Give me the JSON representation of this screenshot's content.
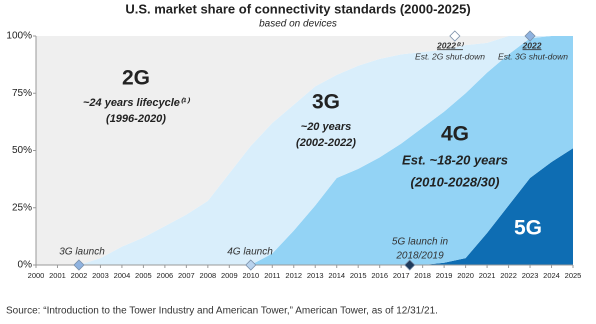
{
  "chart_data": {
    "type": "stacked-area",
    "title": "U.S. market share of connectivity standards (2000-2025)",
    "subtitle": "based on devices",
    "x": [
      2000,
      2001,
      2002,
      2003,
      2004,
      2005,
      2006,
      2007,
      2008,
      2009,
      2010,
      2011,
      2012,
      2013,
      2014,
      2015,
      2016,
      2017,
      2018,
      2019,
      2020,
      2021,
      2022,
      2023,
      2024,
      2025
    ],
    "xlim": [
      2000,
      2025
    ],
    "xticks": [
      2000,
      2001,
      2002,
      2003,
      2004,
      2005,
      2006,
      2007,
      2008,
      2009,
      2010,
      2011,
      2012,
      2013,
      2014,
      2015,
      2016,
      2017,
      2018,
      2019,
      2020,
      2021,
      2022,
      2023,
      2024,
      2025
    ],
    "ylim": [
      0,
      100
    ],
    "yticks": [
      {
        "value": 0,
        "label": "0%"
      },
      {
        "value": 25,
        "label": "25%"
      },
      {
        "value": 50,
        "label": "50%"
      },
      {
        "value": 75,
        "label": "75%"
      },
      {
        "value": 100,
        "label": "100%"
      }
    ],
    "series": [
      {
        "name": "5G",
        "color": "#0e6db3",
        "values": [
          0,
          0,
          0,
          0,
          0,
          0,
          0,
          0,
          0,
          0,
          0,
          0,
          0,
          0,
          0,
          0,
          0,
          0,
          0,
          1,
          3,
          14,
          26,
          38,
          45,
          51
        ]
      },
      {
        "name": "4G",
        "color": "#93d3f5",
        "values": [
          0,
          0,
          0,
          0,
          0,
          0,
          0,
          0,
          0,
          0,
          0,
          5,
          15,
          26,
          38,
          42,
          47,
          53,
          60,
          66,
          72,
          70,
          66,
          61,
          55,
          49
        ]
      },
      {
        "name": "3G",
        "color": "#d9eefb",
        "values": [
          0,
          0,
          0,
          3,
          8,
          12,
          17,
          22,
          28,
          40,
          52,
          57,
          55,
          52,
          45,
          45,
          43,
          39,
          33,
          27,
          21,
          13,
          8,
          1,
          0,
          0
        ]
      },
      {
        "name": "2G",
        "color": "#efefef",
        "values": [
          100,
          100,
          100,
          97,
          92,
          88,
          83,
          78,
          72,
          60,
          48,
          38,
          30,
          22,
          17,
          13,
          10,
          8,
          7,
          6,
          4,
          3,
          0,
          0,
          0,
          0
        ]
      }
    ],
    "markers": [
      {
        "x": 2002,
        "y": 0,
        "color": "#8fb3e0"
      },
      {
        "x": 2010,
        "y": 0,
        "color": "#b9d3ee"
      },
      {
        "x": 2017.4,
        "y": 0,
        "color": "#1f3b5c"
      },
      {
        "x": 2019.5,
        "y": 100,
        "color": "#ffffff"
      },
      {
        "x": 2023,
        "y": 100,
        "color": "#8fb3e0"
      }
    ],
    "annotations": [
      "~24 years lifecycle⁽¹⁾",
      "(1996-2020)",
      "~20 years",
      "(2002-2022)",
      "Est. ~18-20 years",
      "(2010-2028/30)",
      "3G launch",
      "4G launch",
      "5G launch in",
      "2018/2019",
      "2022⁽²⁾",
      "Est. 2G shut-down",
      "2022",
      "Est. 3G shut-down"
    ],
    "source": "Source: “Introduction to the Tower Industry and American Tower,” American Tower, as of 12/31/21."
  }
}
